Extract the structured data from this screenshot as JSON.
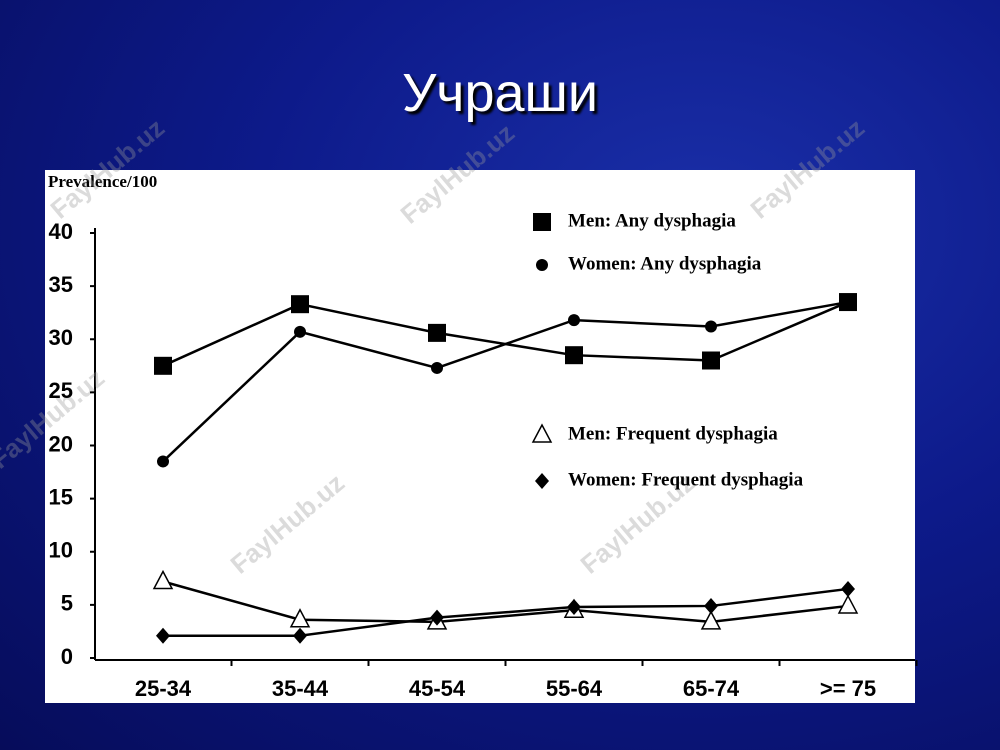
{
  "slide_title": "Учраши",
  "watermark": "FaylHub.uz",
  "chart_data": {
    "type": "line",
    "y_label": "Prevalence/100",
    "categories": [
      "25-34",
      "35-44",
      "45-54",
      "55-64",
      "65-74",
      ">= 75"
    ],
    "series": [
      {
        "name": "Men: Any dysphagia",
        "color": "#000000",
        "marker": "square",
        "values": [
          27.5,
          33.3,
          30.6,
          28.5,
          28,
          33.5
        ]
      },
      {
        "name": "Women: Any dysphagia",
        "color": "#000000",
        "marker": "circle",
        "values": [
          18.5,
          30.7,
          27.3,
          31.8,
          31.2,
          33.5
        ]
      },
      {
        "name": "Men: Frequent dysphagia",
        "color": "#000000",
        "marker": "triangle",
        "values": [
          7.2,
          3.6,
          3.4,
          4.5,
          3.4,
          4.9
        ]
      },
      {
        "name": "Women: Frequent dysphagia",
        "color": "#000000",
        "marker": "diamond",
        "values": [
          2.1,
          2.1,
          3.8,
          4.8,
          4.9,
          6.5
        ]
      }
    ],
    "ylim": [
      0,
      40
    ],
    "yticks": [
      0,
      5,
      10,
      15,
      20,
      25,
      30,
      35,
      40
    ],
    "grid": false
  }
}
